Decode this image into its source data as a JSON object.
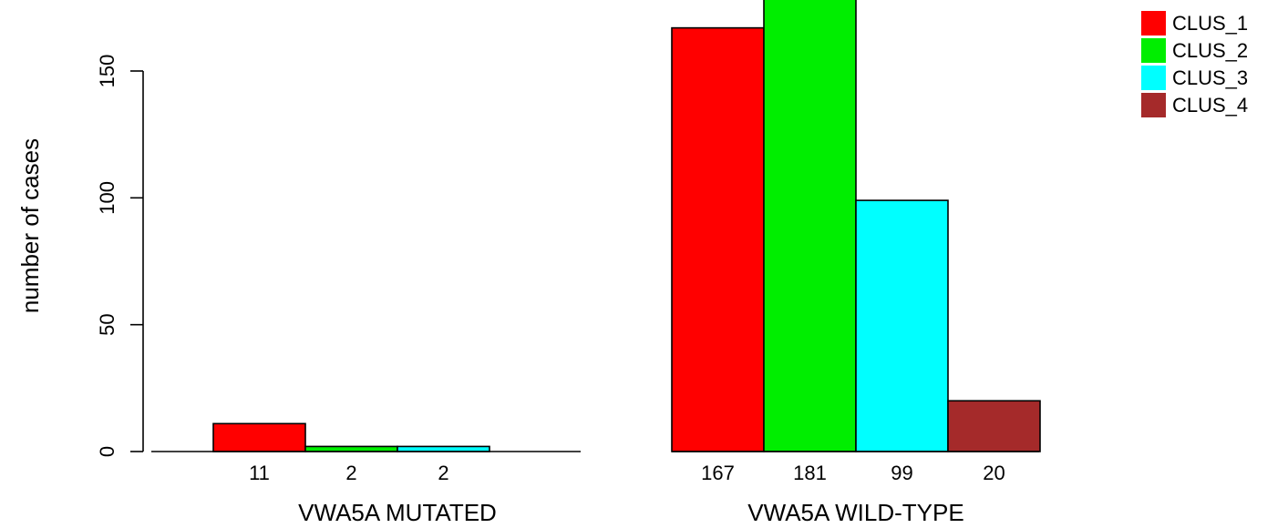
{
  "chart_data": {
    "type": "bar",
    "ylabel": "number of cases",
    "ylim": [
      0,
      180
    ],
    "yticks": [
      0,
      50,
      100,
      150
    ],
    "grid": false,
    "legend_position": "top-right",
    "groups": [
      {
        "label": "VWA5A MUTATED",
        "values": [
          11,
          2,
          2,
          0
        ],
        "value_labels": [
          "11",
          "2",
          "2",
          ""
        ]
      },
      {
        "label": "VWA5A WILD-TYPE",
        "values": [
          167,
          181,
          99,
          20
        ],
        "value_labels": [
          "167",
          "181",
          "99",
          "20"
        ]
      }
    ],
    "series": [
      {
        "name": "CLUS_1",
        "color": "#ff0000"
      },
      {
        "name": "CLUS_2",
        "color": "#00ee00"
      },
      {
        "name": "CLUS_3",
        "color": "#00ffff"
      },
      {
        "name": "CLUS_4",
        "color": "#a52a2a"
      }
    ]
  }
}
